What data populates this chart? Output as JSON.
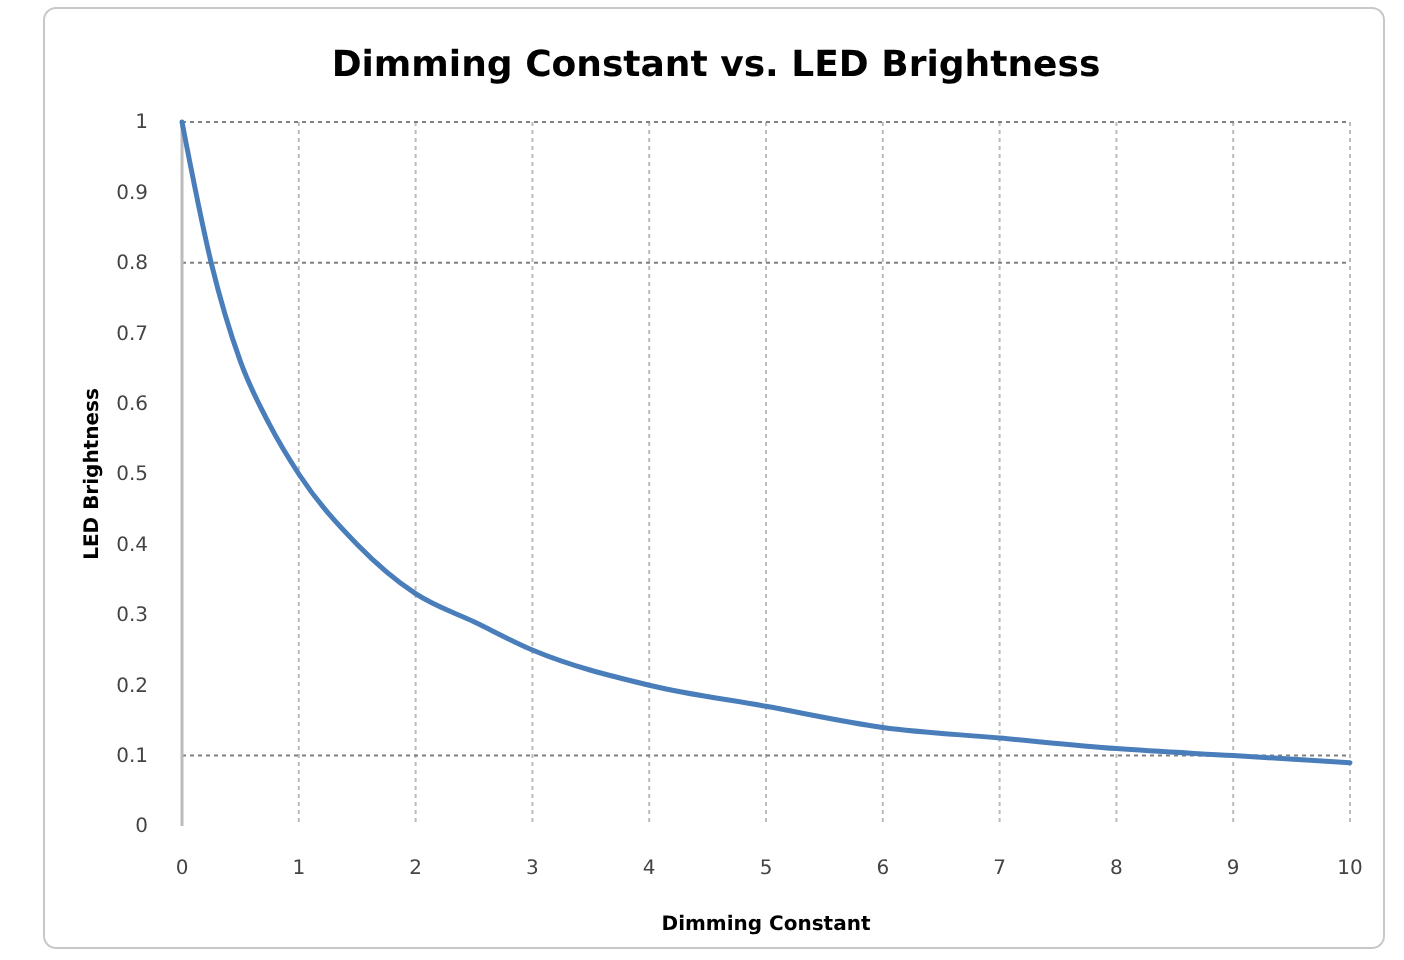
{
  "chart_data": {
    "type": "line",
    "title": "Dimming Constant vs. LED Brightness",
    "xlabel": "Dimming Constant",
    "ylabel": "LED Brightness",
    "x": [
      0,
      0.25,
      0.5,
      0.75,
      1,
      1.5,
      2,
      2.5,
      3,
      4,
      5,
      6,
      7,
      8,
      9,
      10
    ],
    "series": [
      {
        "color": "#4a7ebb",
        "values": [
          1,
          0.8,
          0.66,
          0.57,
          0.5,
          0.4,
          0.33,
          0.29,
          0.25,
          0.2,
          0.17,
          0.14,
          0.125,
          0.11,
          0.1,
          0.09
        ]
      }
    ],
    "xlim": [
      0,
      10
    ],
    "xticks": [
      0,
      1,
      2,
      3,
      4,
      5,
      6,
      7,
      8,
      9,
      10
    ],
    "ylim": [
      0,
      1
    ],
    "yticks": [
      0,
      0.1,
      0.2,
      0.3,
      0.4,
      0.5,
      0.6,
      0.7,
      0.8,
      0.9,
      1
    ],
    "grid": "x",
    "marker": "none",
    "line_style": "solid",
    "ref_lines": [
      {
        "axis": "y",
        "value": 0.8,
        "color": "#808080",
        "line_style": "dotted"
      },
      {
        "axis": "y",
        "value": 0.1,
        "color": "#808080",
        "line_style": "dotted"
      }
    ]
  }
}
